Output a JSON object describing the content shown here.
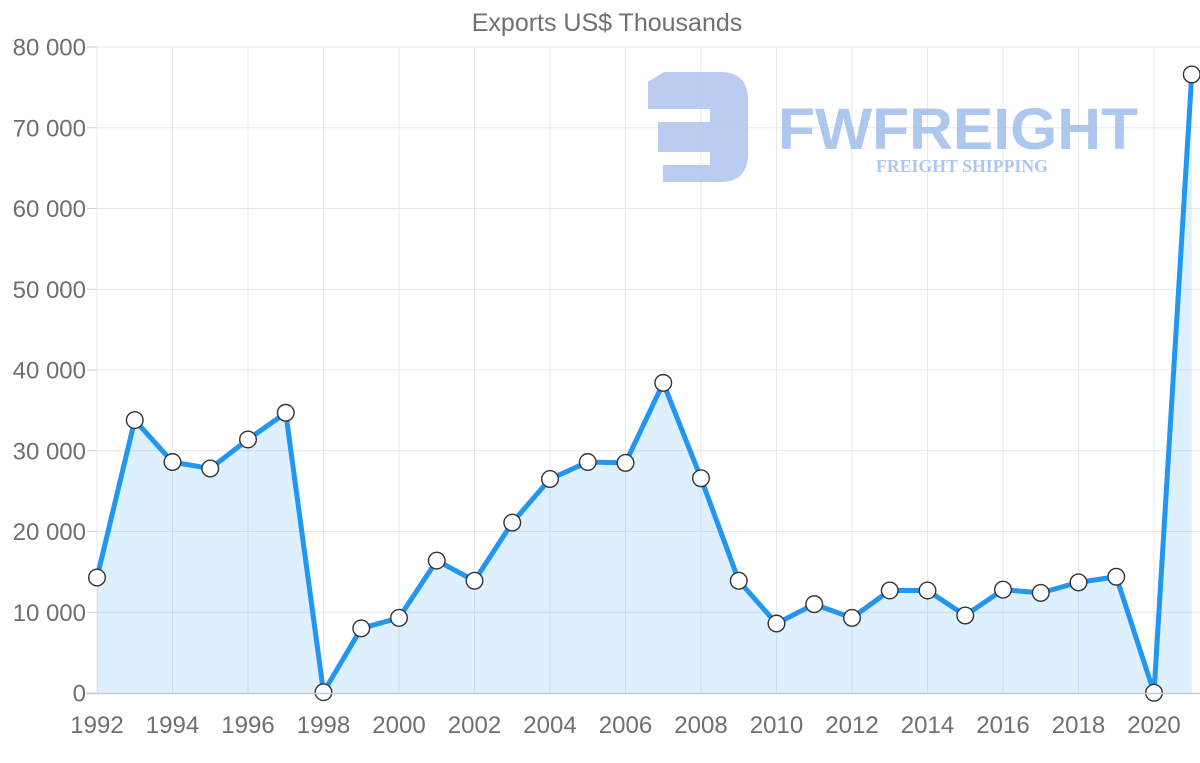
{
  "chart": {
    "title": "Exports US$ Thousands",
    "title_color": "#707070",
    "axis_label_color": "#6f6f6f",
    "gridline_color": "#e8e8e8",
    "tick_color": "#cfcfcf",
    "axis_line_color": "#c0cdde",
    "line_color": "#2196f3",
    "area_fill": "rgba(33,150,243,0.15)",
    "marker_fill": "#ffffff",
    "marker_stroke": "#333333"
  },
  "watermark": {
    "brand": "FWFREIGHT",
    "tagline": "FREIGHT SHIPPING",
    "mark_color": "#b3c7ef",
    "brand_color": "#a6c1ee",
    "tagline_color": "#a3c2f2"
  },
  "chart_data": {
    "type": "area",
    "title": "Exports US$ Thousands",
    "series_name": "Exports",
    "x": [
      1992,
      1993,
      1994,
      1995,
      1996,
      1997,
      1998,
      1999,
      2000,
      2001,
      2002,
      2003,
      2004,
      2005,
      2006,
      2007,
      2008,
      2009,
      2010,
      2011,
      2012,
      2013,
      2014,
      2015,
      2016,
      2017,
      2018,
      2019,
      2020,
      2021
    ],
    "values": [
      14300,
      33800,
      28600,
      27800,
      31400,
      34700,
      100,
      8000,
      9300,
      16400,
      13900,
      21100,
      26500,
      28600,
      28500,
      38400,
      26600,
      13900,
      8600,
      11000,
      9300,
      12700,
      12700,
      9600,
      12800,
      12400,
      13700,
      14400,
      30,
      76600
    ],
    "xlabel": "",
    "ylabel": "",
    "xlim": [
      1992,
      2021
    ],
    "ylim": [
      0,
      80000
    ],
    "ytick_step": 10000,
    "ytick_labels": [
      "0",
      "10 000",
      "20 000",
      "30 000",
      "40 000",
      "50 000",
      "60 000",
      "70 000",
      "80 000"
    ],
    "xtick_labels": [
      "1992",
      "1994",
      "1996",
      "1998",
      "2000",
      "2002",
      "2004",
      "2006",
      "2008",
      "2010",
      "2012",
      "2014",
      "2016",
      "2018",
      "2020"
    ],
    "grid": true,
    "legend": false,
    "marker": "circle"
  }
}
